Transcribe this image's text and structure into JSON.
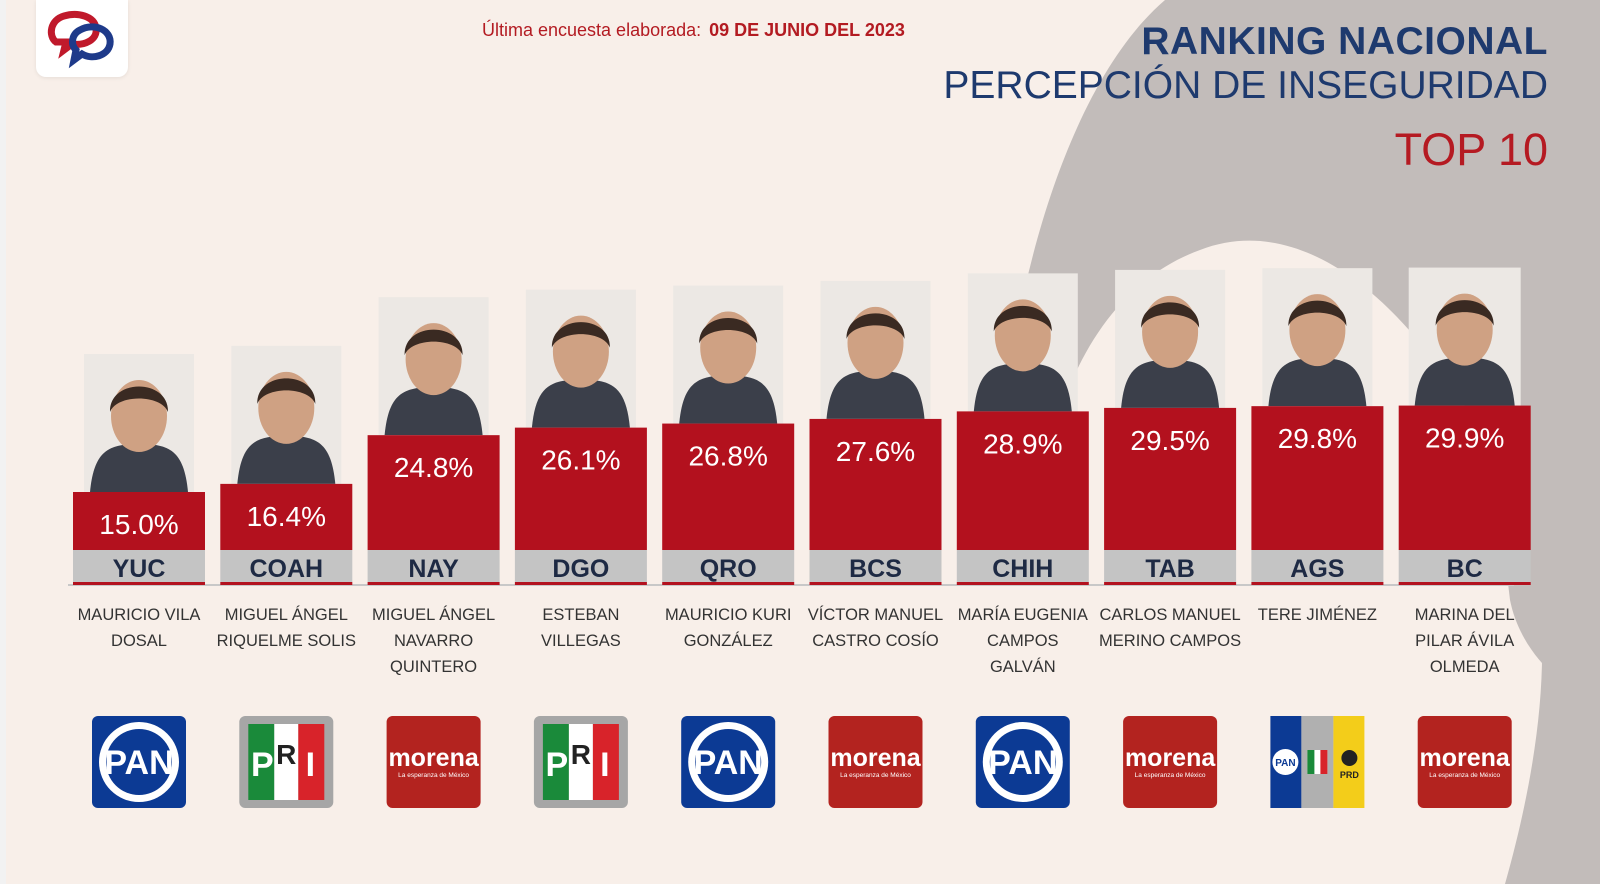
{
  "header": {
    "survey_label": "Última encuesta elaborada:",
    "survey_date": "09 DE JUNIO DEL 2023",
    "title_line1": "RANKING NACIONAL",
    "title_line2": "PERCEPCIÓN DE INSEGURIDAD",
    "title_line3": "TOP 10"
  },
  "colors": {
    "bar": "#b3111e",
    "label_band": "#c4c4c4",
    "title_navy": "#1e3a6e",
    "accent_red": "#b51a22",
    "pan_blue": "#0c3a94",
    "morena_red": "#b3231f",
    "pri_green": "#1a8a3a"
  },
  "chart_data": {
    "type": "bar",
    "title": "PERCEPCIÓN DE INSEGURIDAD",
    "categories": [
      "YUC",
      "COAH",
      "NAY",
      "DGO",
      "QRO",
      "BCS",
      "CHIH",
      "TAB",
      "AGS",
      "BC"
    ],
    "values": [
      15.0,
      16.4,
      24.8,
      26.1,
      26.8,
      27.6,
      28.9,
      29.5,
      29.8,
      29.9
    ],
    "value_labels": [
      "15.0%",
      "16.4%",
      "24.8%",
      "26.1%",
      "26.8%",
      "27.6%",
      "28.9%",
      "29.5%",
      "29.8%",
      "29.9%"
    ],
    "governors": [
      [
        "MAURICIO VILA",
        "DOSAL"
      ],
      [
        "MIGUEL ÁNGEL",
        "RIQUELME SOLIS"
      ],
      [
        "MIGUEL ÁNGEL",
        "NAVARRO",
        "QUINTERO"
      ],
      [
        "ESTEBAN",
        "VILLEGAS"
      ],
      [
        "MAURICIO KURI",
        "GONZÁLEZ"
      ],
      [
        "VÍCTOR MANUEL",
        "CASTRO COSÍO"
      ],
      [
        "MARÍA EUGENIA",
        "CAMPOS",
        "GALVÁN"
      ],
      [
        "CARLOS MANUEL",
        "MERINO CAMPOS"
      ],
      [
        "TERE JIMÉNEZ"
      ],
      [
        "MARINA DEL",
        "PILAR ÁVILA",
        "OLMEDA"
      ]
    ],
    "parties": [
      "PAN",
      "PRI",
      "morena",
      "PRI",
      "PAN",
      "morena",
      "PAN",
      "morena",
      "PAN-PRI-PRD",
      "morena"
    ],
    "party_texts": {
      "pan": "PAN",
      "pri_p": "P",
      "pri_r": "R",
      "pri_i": "I",
      "morena": "morena",
      "morena_sub": "La esperanza de México",
      "prd": "PRD"
    },
    "photo_icon": "person-portrait-icon"
  }
}
